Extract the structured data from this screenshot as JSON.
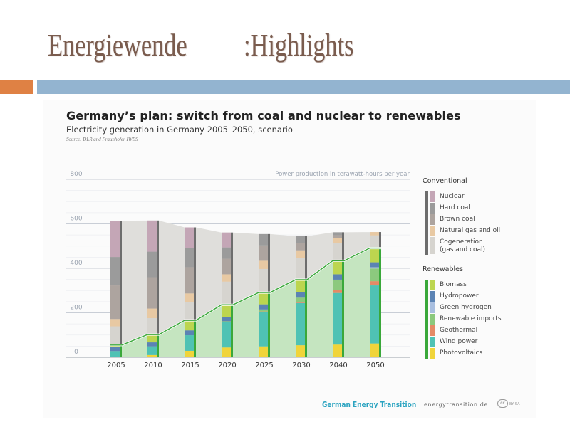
{
  "slide": {
    "title_left": "Energiewende",
    "title_right": ":Highlights"
  },
  "chart_data": {
    "type": "bar",
    "stacked": true,
    "title": "Germany’s plan: switch from coal and nuclear to renewables",
    "subtitle": "Electricity generation in Germany 2005–2050, scenario",
    "source": "Source: DLR and Fraunhofer IWES",
    "ylabel": "Power production in terawatt-hours per year",
    "ylim": [
      0,
      800
    ],
    "yticks": [
      "0",
      "200",
      "400",
      "600",
      "800"
    ],
    "categories": [
      "2005",
      "2010",
      "2015",
      "2020",
      "2025",
      "2030",
      "2040",
      "2050"
    ],
    "groups": [
      {
        "name": "Conventional",
        "color": "#6d6d6d",
        "series": [
          {
            "name": "Nuclear",
            "color": "#c4a6b6",
            "values": [
              163,
              140,
              93,
              67,
              0,
              0,
              0,
              0
            ]
          },
          {
            "name": "Hard coal",
            "color": "#9b9b9b",
            "values": [
              128,
              115,
              86,
              51,
              51,
              32,
              13,
              0
            ]
          },
          {
            "name": "Brown coal",
            "color": "#ada49f",
            "values": [
              151,
              141,
              118,
              70,
              69,
              31,
              12,
              0
            ]
          },
          {
            "name": "Natural gas and oil",
            "color": "#e8c9a3",
            "values": [
              33,
              43,
              38,
              33,
              37,
              36,
              22,
              15
            ]
          },
          {
            "name": "Cogeneration",
            "name2": "(gas and coal)",
            "color": "#d6d4cf",
            "values": [
              84,
              74,
              83,
              104,
              106,
              96,
              81,
              57
            ]
          }
        ]
      },
      {
        "name": "Renewables",
        "color": "#3aa83a",
        "series": [
          {
            "name": "Biomass",
            "color": "#bcd54f",
            "values": [
              9,
              35,
              45,
              54,
              53,
              57,
              61,
              64
            ]
          },
          {
            "name": "Hydropower",
            "color": "#5b83b4",
            "values": [
              18,
              18,
              22,
              20,
              23,
              24,
              24,
              22
            ]
          },
          {
            "name": "Green hydrogen",
            "color": "#a9bfe0",
            "values": [
              0,
              0,
              0,
              0,
              0,
              0,
              0,
              6
            ]
          },
          {
            "name": "Renewable imports",
            "color": "#8cc97e",
            "values": [
              0,
              0,
              0,
              3,
              9,
              19,
              46,
              57
            ]
          },
          {
            "name": "Geothermal",
            "color": "#e58a66",
            "values": [
              0,
              0,
              0,
              0,
              4,
              5,
              14,
              19
            ]
          },
          {
            "name": "Wind power",
            "color": "#4fc2b4",
            "values": [
              27,
              39,
              70,
              115,
              153,
              190,
              232,
              261
            ]
          },
          {
            "name": "Photovoltaics",
            "color": "#f0d43a",
            "values": [
              1,
              10,
              29,
              44,
              49,
              54,
              57,
              62
            ]
          }
        ]
      }
    ],
    "area_colors": {
      "conventional": "#dfdedb",
      "renewables": "#c5e5c0",
      "line": "#3aa83a"
    }
  },
  "footer": {
    "brand": "German Energy Transition",
    "url": "energytransition.de",
    "cc": "cc",
    "license": "BY SA"
  }
}
